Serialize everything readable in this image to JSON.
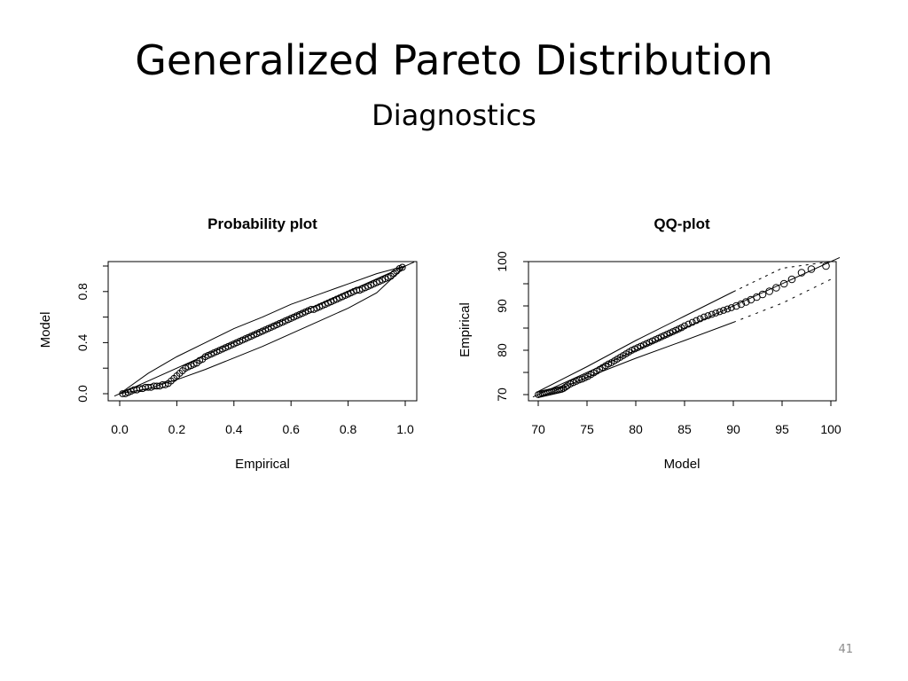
{
  "slide": {
    "title": "Generalized Pareto Distribution",
    "subtitle": "Diagnostics",
    "page_number": "41"
  },
  "chart_data": [
    {
      "type": "scatter",
      "title": "Probability plot",
      "xlabel": "Empirical",
      "ylabel": "Model",
      "xlim": [
        0,
        1
      ],
      "ylim": [
        0,
        1
      ],
      "xticks": [
        "0.0",
        "0.2",
        "0.4",
        "0.6",
        "0.8",
        "1.0"
      ],
      "yticks": [
        "0.0",
        "0.4",
        "0.8"
      ],
      "reference_line": "y = x",
      "band_style": "solid",
      "series": [
        {
          "x": [
            0.01,
            0.02,
            0.03,
            0.04,
            0.05,
            0.06,
            0.07,
            0.08,
            0.09,
            0.1,
            0.11,
            0.12,
            0.13,
            0.14,
            0.15,
            0.16,
            0.17,
            0.18,
            0.19,
            0.2,
            0.21,
            0.22,
            0.23,
            0.24,
            0.25,
            0.26,
            0.27,
            0.28,
            0.29,
            0.3,
            0.31,
            0.32,
            0.33,
            0.34,
            0.35,
            0.36,
            0.37,
            0.38,
            0.39,
            0.4,
            0.41,
            0.42,
            0.43,
            0.44,
            0.45,
            0.46,
            0.47,
            0.48,
            0.49,
            0.5,
            0.51,
            0.52,
            0.53,
            0.54,
            0.55,
            0.56,
            0.57,
            0.58,
            0.59,
            0.6,
            0.61,
            0.62,
            0.63,
            0.64,
            0.65,
            0.66,
            0.67,
            0.68,
            0.69,
            0.7,
            0.71,
            0.72,
            0.73,
            0.74,
            0.75,
            0.76,
            0.77,
            0.78,
            0.79,
            0.8,
            0.81,
            0.82,
            0.83,
            0.84,
            0.85,
            0.86,
            0.87,
            0.88,
            0.89,
            0.9,
            0.91,
            0.92,
            0.93,
            0.94,
            0.95,
            0.96,
            0.97,
            0.98,
            0.99
          ],
          "y": [
            0.0,
            0.0,
            0.01,
            0.02,
            0.03,
            0.03,
            0.04,
            0.04,
            0.05,
            0.05,
            0.05,
            0.06,
            0.06,
            0.06,
            0.07,
            0.07,
            0.08,
            0.1,
            0.12,
            0.14,
            0.16,
            0.18,
            0.2,
            0.21,
            0.22,
            0.23,
            0.24,
            0.26,
            0.27,
            0.29,
            0.3,
            0.31,
            0.32,
            0.33,
            0.34,
            0.35,
            0.36,
            0.37,
            0.38,
            0.39,
            0.4,
            0.41,
            0.42,
            0.43,
            0.44,
            0.45,
            0.46,
            0.47,
            0.48,
            0.49,
            0.5,
            0.51,
            0.52,
            0.53,
            0.54,
            0.55,
            0.56,
            0.57,
            0.58,
            0.59,
            0.6,
            0.61,
            0.62,
            0.63,
            0.64,
            0.65,
            0.66,
            0.66,
            0.67,
            0.68,
            0.69,
            0.7,
            0.71,
            0.72,
            0.73,
            0.74,
            0.75,
            0.76,
            0.77,
            0.78,
            0.79,
            0.8,
            0.81,
            0.81,
            0.82,
            0.83,
            0.84,
            0.85,
            0.86,
            0.87,
            0.88,
            0.89,
            0.9,
            0.91,
            0.92,
            0.94,
            0.96,
            0.98,
            0.99
          ]
        }
      ],
      "band": {
        "x": [
          0,
          0.1,
          0.2,
          0.3,
          0.4,
          0.5,
          0.6,
          0.7,
          0.8,
          0.9,
          1.0
        ],
        "lower": [
          0,
          0.04,
          0.11,
          0.19,
          0.28,
          0.37,
          0.47,
          0.57,
          0.67,
          0.79,
          1.0
        ],
        "upper": [
          0,
          0.16,
          0.29,
          0.4,
          0.51,
          0.6,
          0.7,
          0.78,
          0.86,
          0.94,
          1.0
        ]
      }
    },
    {
      "type": "scatter",
      "title": "QQ-plot",
      "xlabel": "Model",
      "ylabel": "Empirical",
      "xlim": [
        70,
        100
      ],
      "ylim": [
        70,
        100
      ],
      "xticks": [
        "70",
        "75",
        "80",
        "85",
        "90",
        "95",
        "100"
      ],
      "yticks": [
        "70",
        "80",
        "90",
        "100"
      ],
      "reference_line": "y = x",
      "band_style": "mixed",
      "series": [
        {
          "x": [
            70,
            70.2,
            70.4,
            70.6,
            70.8,
            71,
            71.2,
            71.4,
            71.6,
            71.8,
            72,
            72.2,
            72.4,
            72.6,
            72.8,
            73,
            73.3,
            73.6,
            73.9,
            74.2,
            74.5,
            74.8,
            75.1,
            75.4,
            75.7,
            76,
            76.3,
            76.6,
            76.9,
            77.2,
            77.5,
            77.8,
            78.1,
            78.4,
            78.7,
            79,
            79.3,
            79.6,
            79.9,
            80.2,
            80.5,
            80.8,
            81.1,
            81.4,
            81.7,
            82,
            82.3,
            82.6,
            82.9,
            83.2,
            83.5,
            83.8,
            84.1,
            84.4,
            84.7,
            85,
            85.4,
            85.8,
            86.2,
            86.6,
            87,
            87.4,
            87.8,
            88.2,
            88.6,
            89,
            89.4,
            89.8,
            90.3,
            90.8,
            91.3,
            91.8,
            92.4,
            93,
            93.7,
            94.4,
            95.2,
            96,
            97,
            98,
            99.5
          ],
          "y": [
            70,
            70.1,
            70.2,
            70.3,
            70.4,
            70.5,
            70.6,
            70.7,
            70.8,
            70.9,
            71,
            71.1,
            71.2,
            71.4,
            71.7,
            72,
            72.4,
            72.7,
            73,
            73.3,
            73.5,
            73.8,
            74.1,
            74.5,
            74.9,
            75.3,
            75.7,
            76.1,
            76.5,
            76.9,
            77.2,
            77.6,
            78,
            78.4,
            78.8,
            79.2,
            79.6,
            80,
            80.3,
            80.6,
            80.9,
            81.2,
            81.5,
            81.8,
            82.1,
            82.4,
            82.7,
            83,
            83.3,
            83.6,
            83.9,
            84.2,
            84.5,
            84.8,
            85.1,
            85.5,
            85.9,
            86.3,
            86.7,
            87.1,
            87.5,
            87.8,
            88.1,
            88.4,
            88.7,
            89,
            89.3,
            89.6,
            90,
            90.4,
            90.9,
            91.4,
            92,
            92.6,
            93.3,
            94.1,
            95,
            96,
            97.5,
            98.3,
            99
          ]
        }
      ],
      "band": {
        "x": [
          70,
          75,
          80,
          85,
          90,
          95,
          100
        ],
        "lower": [
          69.3,
          73.9,
          78.2,
          82.2,
          86.3,
          90.6,
          96.0
        ],
        "upper": [
          70.7,
          76.3,
          82.2,
          87.7,
          93.2,
          98.5,
          100.5
        ]
      }
    }
  ]
}
